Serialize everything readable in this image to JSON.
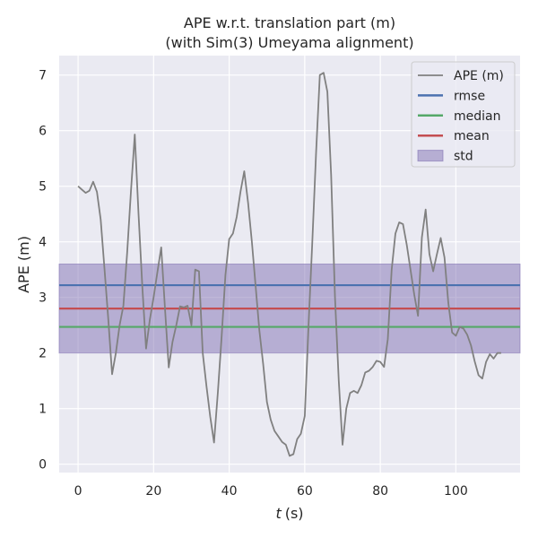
{
  "chart_data": {
    "type": "line",
    "title": "APE w.r.t. translation part (m)",
    "subtitle": "(with Sim(3) Umeyama alignment)",
    "xlabel_italic": "t",
    "xlabel_unit": "(s)",
    "ylabel": "APE (m)",
    "xlim": [
      -5,
      117
    ],
    "ylim": [
      -0.15,
      7.35
    ],
    "xticks": [
      0,
      20,
      40,
      60,
      80,
      100
    ],
    "yticks": [
      0,
      1,
      2,
      3,
      4,
      5,
      6,
      7
    ],
    "grid": true,
    "legend_position": "top-right",
    "series": [
      {
        "name": "APE (m)",
        "color": "#808080",
        "x": [
          0,
          1,
          2,
          3,
          4,
          5,
          6,
          7,
          8,
          9,
          10,
          11,
          12,
          13,
          14,
          15,
          16,
          17,
          18,
          19,
          20,
          21,
          22,
          23,
          24,
          25,
          26,
          27,
          28,
          29,
          30,
          31,
          32,
          33,
          34,
          35,
          36,
          37,
          38,
          39,
          40,
          41,
          42,
          43,
          44,
          45,
          46,
          47,
          48,
          49,
          50,
          51,
          52,
          53,
          54,
          55,
          56,
          57,
          58,
          59,
          60,
          61,
          62,
          63,
          64,
          65,
          66,
          67,
          68,
          69,
          70,
          71,
          72,
          73,
          74,
          75,
          76,
          77,
          78,
          79,
          80,
          81,
          82,
          83,
          84,
          85,
          86,
          87,
          88,
          89,
          90,
          91,
          92,
          93,
          94,
          95,
          96,
          97,
          98,
          99,
          100,
          101,
          102,
          103,
          104,
          105,
          106,
          107,
          108,
          109,
          110,
          111,
          112
        ],
        "values": [
          5.0,
          4.94,
          4.88,
          4.92,
          5.08,
          4.9,
          4.4,
          3.5,
          2.6,
          1.62,
          2.0,
          2.5,
          2.85,
          3.8,
          4.9,
          5.93,
          4.5,
          3.2,
          2.08,
          2.6,
          3.0,
          3.45,
          3.9,
          2.8,
          1.74,
          2.2,
          2.5,
          2.84,
          2.82,
          2.85,
          2.5,
          3.5,
          3.47,
          2.0,
          1.4,
          0.85,
          0.39,
          1.3,
          2.3,
          3.4,
          4.05,
          4.15,
          4.45,
          4.9,
          5.27,
          4.7,
          4.0,
          3.2,
          2.4,
          1.8,
          1.12,
          0.8,
          0.6,
          0.5,
          0.4,
          0.35,
          0.15,
          0.18,
          0.45,
          0.55,
          0.87,
          2.5,
          4.0,
          5.6,
          7.0,
          7.04,
          6.7,
          5.2,
          3.0,
          1.5,
          0.35,
          1.0,
          1.28,
          1.32,
          1.28,
          1.42,
          1.65,
          1.68,
          1.75,
          1.86,
          1.84,
          1.75,
          2.25,
          3.5,
          4.15,
          4.35,
          4.32,
          3.95,
          3.5,
          3.05,
          2.67,
          4.08,
          4.58,
          3.78,
          3.47,
          3.78,
          4.07,
          3.72,
          2.9,
          2.37,
          2.31,
          2.47,
          2.44,
          2.33,
          2.14,
          1.85,
          1.6,
          1.54,
          1.84,
          1.98,
          1.9,
          2.0,
          2.0
        ]
      }
    ],
    "hlines": [
      {
        "name": "rmse",
        "value": 3.22,
        "color": "#4c72b0"
      },
      {
        "name": "median",
        "value": 2.47,
        "color": "#55a868"
      },
      {
        "name": "mean",
        "value": 2.8,
        "color": "#c44e52"
      }
    ],
    "band": {
      "name": "std",
      "lower": 2.0,
      "upper": 3.6,
      "color": "#8172b3"
    }
  }
}
